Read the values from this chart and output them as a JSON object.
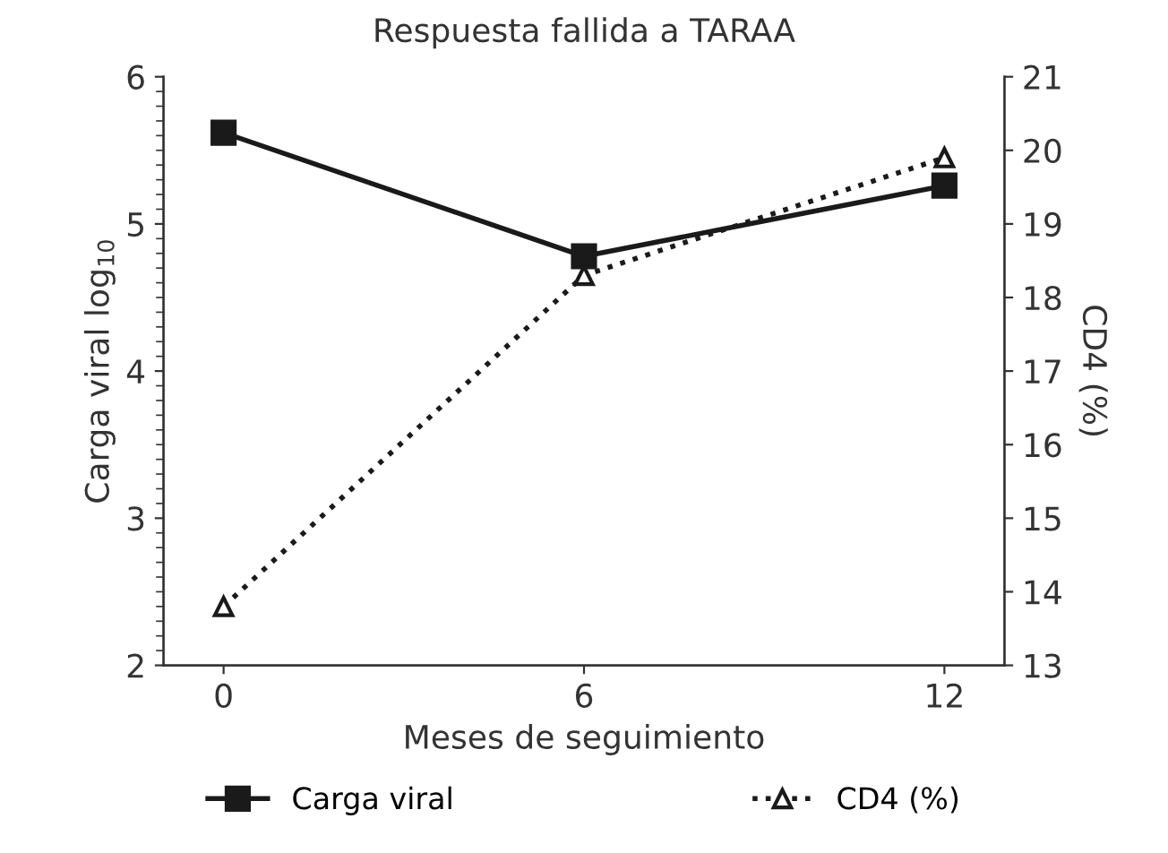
{
  "chart_data": {
    "type": "line",
    "title": "Respuesta fallida a TARAA",
    "xlabel": "Meses de seguimiento",
    "ylabel": "Carga viral log$_{10}$",
    "y2label": "CD4 (%)",
    "x": [
      0,
      6,
      12
    ],
    "xlim": [
      -1,
      13
    ],
    "xticks": [
      0,
      6,
      12
    ],
    "ylim": [
      2,
      6
    ],
    "yticks": [
      2,
      3,
      4,
      5,
      6
    ],
    "y2lim": [
      13,
      21
    ],
    "y2ticks": [
      13,
      14,
      15,
      16,
      17,
      18,
      19,
      20,
      21
    ],
    "grid": false,
    "legend": "bottom",
    "series": [
      {
        "name": "Carga viral",
        "color": "#1a1a1a",
        "values": [
          5.62,
          4.78,
          5.26
        ],
        "marker": "square",
        "line_style": "solid"
      },
      {
        "name": "CD4 (%)",
        "color": "#1a1a1a",
        "values": [
          13.8,
          18.3,
          19.9
        ],
        "marker": "triangle",
        "line_style": "dotted",
        "axis": "y2"
      }
    ]
  }
}
